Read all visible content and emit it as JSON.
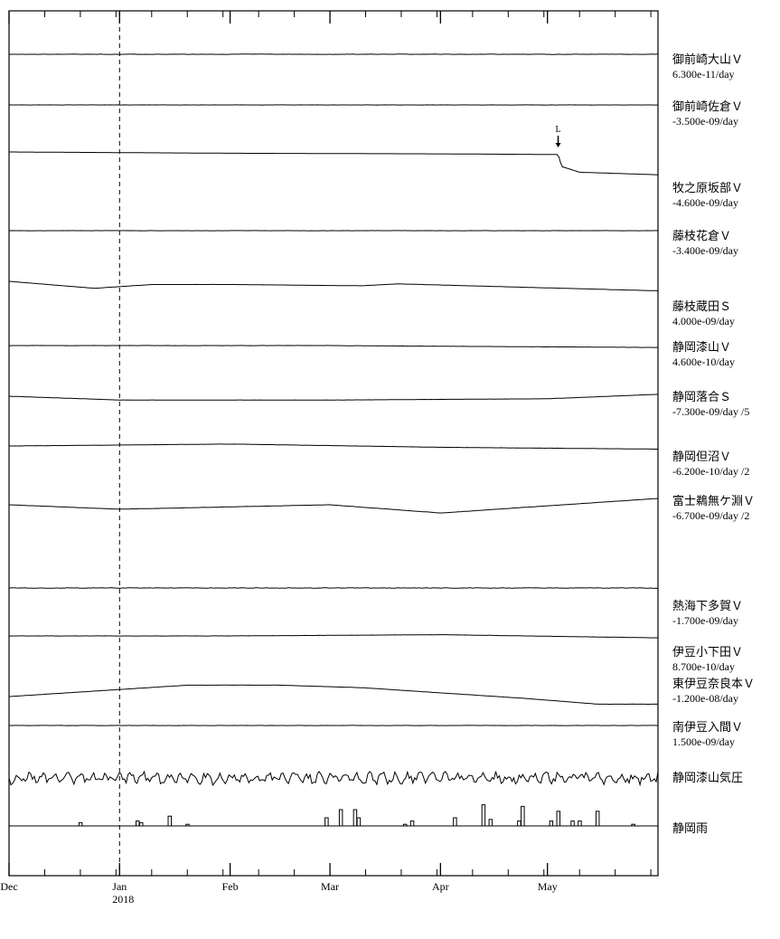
{
  "chart_data": {
    "type": "line",
    "x_axis": {
      "labels": [
        {
          "date": "2017-12-01",
          "text": "Dec",
          "year": ""
        },
        {
          "date": "2018-01-01",
          "text": "Jan",
          "year": "2018"
        },
        {
          "date": "2018-02-01",
          "text": "Feb",
          "year": ""
        },
        {
          "date": "2018-03-01",
          "text": "Mar",
          "year": ""
        },
        {
          "date": "2018-04-01",
          "text": "Apr",
          "year": ""
        },
        {
          "date": "2018-05-01",
          "text": "May",
          "year": ""
        }
      ],
      "range": [
        "2017-12-01",
        "2018-06-01"
      ],
      "minor_tick_interval_days": 10
    },
    "reference_line": {
      "date": "2018-01-01",
      "style": "dashed"
    },
    "series": [
      {
        "name": "御前崎大山Ｖ",
        "rate": "6.300e-11/day",
        "points": [
          [
            "2017-12-01",
            0.0
          ],
          [
            "2018-01-01",
            0.0
          ],
          [
            "2018-02-01",
            0.0
          ],
          [
            "2018-03-01",
            0.0
          ],
          [
            "2018-04-01",
            0.0
          ],
          [
            "2018-05-01",
            0.0
          ],
          [
            "2018-06-01",
            0.0
          ]
        ],
        "noise": 0.5
      },
      {
        "name": "御前崎佐倉Ｖ",
        "rate": "-3.500e-09/day",
        "points": [
          [
            "2017-12-01",
            0.0
          ],
          [
            "2018-06-01",
            0.0
          ]
        ],
        "noise": 0.3
      },
      {
        "name": "牧之原坂部Ｖ",
        "rate": "-4.600e-09/day",
        "points": [
          [
            "2017-12-01",
            0.0
          ],
          [
            "2018-02-01",
            0.2
          ],
          [
            "2018-04-01",
            0.3
          ],
          [
            "2018-05-04",
            0.4
          ],
          [
            "2018-05-05",
            2.3
          ],
          [
            "2018-05-10",
            3.2
          ],
          [
            "2018-06-01",
            3.6
          ]
        ],
        "noise": 0.0
      },
      {
        "name": "藤枝花倉Ｖ",
        "rate": "-3.400e-09/day",
        "points": [
          [
            "2017-12-01",
            0.0
          ],
          [
            "2018-06-01",
            0.0
          ]
        ],
        "noise": 0.3
      },
      {
        "name": "藤枝蔵田Ｓ",
        "rate": "4.000e-09/day",
        "points": [
          [
            "2017-12-01",
            0.0
          ],
          [
            "2017-12-25",
            1.1
          ],
          [
            "2018-01-10",
            0.5
          ],
          [
            "2018-02-01",
            0.5
          ],
          [
            "2018-03-10",
            0.7
          ],
          [
            "2018-03-20",
            0.4
          ],
          [
            "2018-06-01",
            1.5
          ]
        ],
        "noise": 0.2
      },
      {
        "name": "静岡漆山Ｖ",
        "rate": "4.600e-10/day",
        "points": [
          [
            "2017-12-01",
            0.0
          ],
          [
            "2018-03-01",
            0.0
          ],
          [
            "2018-06-01",
            0.3
          ]
        ],
        "noise": 0.3
      },
      {
        "name": "静岡落合Ｓ",
        "rate": "-7.300e-09/day /5",
        "points": [
          [
            "2017-12-01",
            0.0
          ],
          [
            "2018-01-01",
            0.6
          ],
          [
            "2018-03-01",
            0.6
          ],
          [
            "2018-05-01",
            0.4
          ],
          [
            "2018-06-01",
            -0.3
          ]
        ],
        "noise": 0.2
      },
      {
        "name": "静岡但沼Ｖ",
        "rate": "-6.200e-10/day /2",
        "points": [
          [
            "2017-12-01",
            0.0
          ],
          [
            "2018-02-01",
            -0.3
          ],
          [
            "2018-04-01",
            0.2
          ],
          [
            "2018-06-01",
            0.5
          ]
        ],
        "noise": 0.3
      },
      {
        "name": "富士鵜無ケ淵Ｖ",
        "rate": "-6.700e-09/day /2",
        "points": [
          [
            "2017-12-01",
            0.0
          ],
          [
            "2018-01-01",
            0.7
          ],
          [
            "2018-03-01",
            0.0
          ],
          [
            "2018-04-01",
            1.3
          ],
          [
            "2018-06-01",
            -1.0
          ]
        ],
        "noise": 0.3
      },
      {
        "name": "熱海下多賀Ｖ",
        "rate": "-1.700e-09/day",
        "points": [
          [
            "2017-12-01",
            0.0
          ],
          [
            "2018-06-01",
            0.0
          ]
        ],
        "noise": 1.0
      },
      {
        "name": "伊豆小下田Ｖ",
        "rate": "8.700e-10/day",
        "points": [
          [
            "2017-12-01",
            0.0
          ],
          [
            "2018-02-01",
            0.0
          ],
          [
            "2018-04-01",
            -0.2
          ],
          [
            "2018-06-01",
            0.3
          ]
        ],
        "noise": 0.3
      },
      {
        "name": "東伊豆奈良本Ｖ",
        "rate": "-1.200e-08/day",
        "points": [
          [
            "2017-12-01",
            0.0
          ],
          [
            "2018-01-20",
            -1.8
          ],
          [
            "2018-02-15",
            -1.8
          ],
          [
            "2018-03-10",
            -1.4
          ],
          [
            "2018-04-25",
            0.3
          ],
          [
            "2018-05-15",
            1.2
          ],
          [
            "2018-06-01",
            1.2
          ]
        ],
        "noise": 0.2
      },
      {
        "name": "南伊豆入間Ｖ",
        "rate": "1.500e-09/day",
        "points": [
          [
            "2017-12-01",
            0.0
          ],
          [
            "2018-06-01",
            0.0
          ]
        ],
        "noise": 0.4
      },
      {
        "name": "静岡漆山気圧",
        "rate": "",
        "points": [
          [
            "2017-12-01",
            0.0
          ],
          [
            "2018-06-01",
            0.0
          ]
        ],
        "noise": 8.0
      },
      {
        "name": "静岡雨",
        "rate": "",
        "type": "bar",
        "bars": [
          [
            "2017-12-21",
            0.2
          ],
          [
            "2018-01-06",
            0.3
          ],
          [
            "2018-01-07",
            0.2
          ],
          [
            "2018-01-15",
            0.6
          ],
          [
            "2018-01-20",
            0.1
          ],
          [
            "2018-02-28",
            0.5
          ],
          [
            "2018-03-04",
            1.0
          ],
          [
            "2018-03-08",
            1.0
          ],
          [
            "2018-03-09",
            0.5
          ],
          [
            "2018-03-22",
            0.1
          ],
          [
            "2018-03-24",
            0.3
          ],
          [
            "2018-04-05",
            0.5
          ],
          [
            "2018-04-13",
            1.3
          ],
          [
            "2018-04-15",
            0.4
          ],
          [
            "2018-04-23",
            0.3
          ],
          [
            "2018-04-24",
            1.2
          ],
          [
            "2018-05-02",
            0.3
          ],
          [
            "2018-05-04",
            0.9
          ],
          [
            "2018-05-08",
            0.3
          ],
          [
            "2018-05-10",
            0.3
          ],
          [
            "2018-05-15",
            0.9
          ],
          [
            "2018-05-25",
            0.1
          ]
        ]
      }
    ],
    "annotations": [
      {
        "text": "L",
        "date": "2018-05-04",
        "series_index": 2,
        "arrow": true
      }
    ],
    "grid": false,
    "legend": "right"
  }
}
